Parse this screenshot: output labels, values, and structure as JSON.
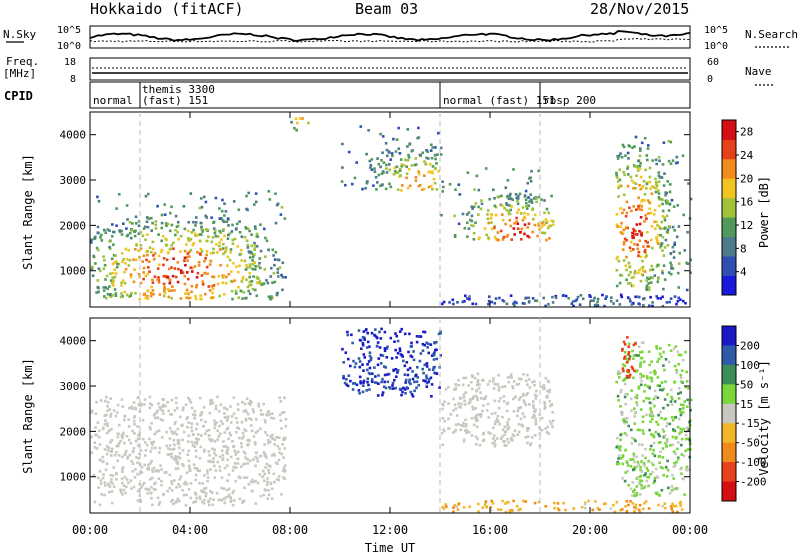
{
  "header": {
    "station": "Hokkaido (fitACF)",
    "beam": "Beam 03",
    "date": "28/Nov/2015"
  },
  "noise_panel": {
    "left_label": "N.Sky",
    "right_label": "N.Search",
    "left_ticks": [
      "10^5",
      "10^0"
    ],
    "right_ticks": [
      "10^5",
      "10^0"
    ]
  },
  "freq_panel": {
    "left_label_1": "Freq.",
    "left_label_2": "[MHz]",
    "right_label": "Nave",
    "left_ticks": [
      "18",
      "8"
    ],
    "right_ticks": [
      "60",
      "0"
    ]
  },
  "cpid_panel": {
    "label": "CPID",
    "segments": [
      {
        "t0": 0.0,
        "t1": 2.0,
        "text": "normal"
      },
      {
        "t0": 2.0,
        "t1": 14.0,
        "text": "themis 3300",
        "text2": "(fast) 151"
      },
      {
        "t0": 14.0,
        "t1": 18.0,
        "text": "normal (fast) 151"
      },
      {
        "t0": 18.0,
        "t1": 24.0,
        "text": "rbsp 200"
      }
    ]
  },
  "x_axis": {
    "label": "Time UT",
    "ticks": [
      "00:00",
      "04:00",
      "08:00",
      "12:00",
      "16:00",
      "20:00",
      "00:00"
    ],
    "hours": [
      0,
      4,
      8,
      12,
      16,
      20,
      24
    ]
  },
  "dashed_boundaries_hours": [
    2.0,
    14.0,
    18.0
  ],
  "chart_data": [
    {
      "type": "heatmap",
      "name": "power",
      "ylabel": "Slant Range [km]",
      "yticks": [
        1000,
        2000,
        3000,
        4000
      ],
      "ylim": [
        200,
        4500
      ],
      "xlim_hours": [
        0,
        24
      ],
      "colorbar_label": "Power [dB]",
      "colorbar_ticks": [
        4,
        8,
        12,
        16,
        20,
        24,
        28
      ],
      "colorbar_range": [
        0,
        30
      ],
      "colors": [
        "#1a1adb",
        "#2f4fb5",
        "#4c7a8a",
        "#4f9a5a",
        "#9fc23a",
        "#f2c41f",
        "#f28a1c",
        "#e8401a",
        "#d40f14"
      ],
      "regions": [
        {
          "t0": 0.0,
          "t1": 7.8,
          "r0": 400,
          "r1": 2800,
          "center_t": 3.5,
          "center_r": 1000,
          "peak_db": 28
        },
        {
          "t0": 8.0,
          "t1": 8.7,
          "r0": 4000,
          "r1": 4400,
          "center_t": 8.4,
          "center_r": 4300,
          "peak_db": 26
        },
        {
          "t0": 10.0,
          "t1": 14.0,
          "r0": 2800,
          "r1": 4300,
          "center_t": 13.0,
          "center_r": 3000,
          "peak_db": 22
        },
        {
          "t0": 14.0,
          "t1": 18.5,
          "r0": 1700,
          "r1": 3300,
          "center_t": 17.0,
          "center_r": 1850,
          "peak_db": 28
        },
        {
          "t0": 21.0,
          "t1": 24.0,
          "r0": 600,
          "r1": 4000,
          "center_t": 21.8,
          "center_r": 2000,
          "peak_db": 28
        },
        {
          "t0": 14.0,
          "t1": 24.0,
          "r0": 200,
          "r1": 500,
          "center_t": 19.0,
          "center_r": 350,
          "peak_db": 10
        }
      ]
    },
    {
      "type": "heatmap",
      "name": "velocity",
      "ylabel": "Slant Range [km]",
      "yticks": [
        1000,
        2000,
        3000,
        4000
      ],
      "ylim": [
        200,
        4500
      ],
      "xlim_hours": [
        0,
        24
      ],
      "colorbar_label": "Velocity [m s⁻¹]",
      "colorbar_ticks": [
        200,
        100,
        50,
        15,
        -15,
        -50,
        -100,
        -200
      ],
      "colors": [
        "#1919c8",
        "#2e5aa8",
        "#3c8c55",
        "#7ad63a",
        "#c8c8c0",
        "#f2b62a",
        "#f08a1c",
        "#e8401a",
        "#d40f14"
      ],
      "regions": [
        {
          "t0": 0.0,
          "t1": 7.8,
          "r0": 400,
          "r1": 2800,
          "class": "ground",
          "velocity": 0
        },
        {
          "t0": 10.0,
          "t1": 14.0,
          "r0": 2800,
          "r1": 4300,
          "class": "ionospheric",
          "velocity": 200
        },
        {
          "t0": 14.0,
          "t1": 18.5,
          "r0": 1700,
          "r1": 3300,
          "class": "ground",
          "velocity": 0
        },
        {
          "t0": 21.0,
          "t1": 24.0,
          "r0": 600,
          "r1": 4000,
          "class": "ionospheric",
          "velocity": 30
        },
        {
          "t0": 21.2,
          "t1": 21.8,
          "r0": 3200,
          "r1": 4200,
          "class": "ionospheric",
          "velocity": -150
        },
        {
          "t0": 14.0,
          "t1": 24.0,
          "r0": 200,
          "r1": 500,
          "class": "ionospheric",
          "velocity": -40
        }
      ]
    }
  ]
}
